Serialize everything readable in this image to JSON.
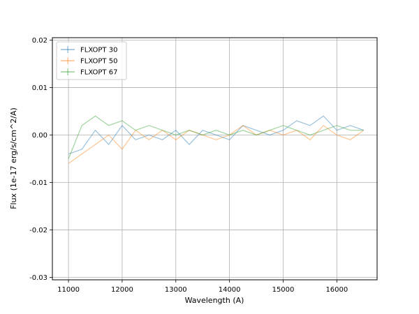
{
  "chart_data": {
    "type": "line",
    "title": "",
    "xlabel": "Wavelength (A)",
    "ylabel": "Flux (1e-17 erg/s/cm^2/A)",
    "xlim": [
      10700,
      16750
    ],
    "ylim": [
      -0.0305,
      0.0205
    ],
    "xticks": [
      11000,
      12000,
      13000,
      14000,
      15000,
      16000
    ],
    "xtick_labels": [
      "11000",
      "12000",
      "13000",
      "14000",
      "15000",
      "16000"
    ],
    "yticks": [
      -0.03,
      -0.02,
      -0.01,
      0.0,
      0.01,
      0.02
    ],
    "ytick_labels": [
      "-0.03",
      "-0.02",
      "-0.01",
      "0.00",
      "0.01",
      "0.02"
    ],
    "grid": true,
    "legend_position": "upper-left",
    "series": [
      {
        "name": "FLXOPT 30",
        "color": "#1f77b4",
        "x": [
          11000,
          11250,
          11500,
          11750,
          12000,
          12250,
          12500,
          12750,
          13000,
          13250,
          13500,
          13750,
          14000,
          14250,
          14500,
          14750,
          15000,
          15250,
          15500,
          15750,
          16000,
          16250,
          16500
        ],
        "y": [
          -0.004,
          -0.003,
          0.001,
          -0.002,
          0.002,
          -0.001,
          0.0,
          -0.001,
          0.001,
          -0.002,
          0.001,
          0.0,
          -0.001,
          0.002,
          0.001,
          0.0,
          0.001,
          0.003,
          0.002,
          0.004,
          0.001,
          0.002,
          0.001
        ]
      },
      {
        "name": "FLXOPT 50",
        "color": "#ff7f0e",
        "x": [
          11000,
          11250,
          11500,
          11750,
          12000,
          12250,
          12500,
          12750,
          13000,
          13250,
          13500,
          13750,
          14000,
          14250,
          14500,
          14750,
          15000,
          15250,
          15500,
          15750,
          16000,
          16250,
          16500
        ],
        "y": [
          -0.006,
          -0.004,
          -0.002,
          0.0,
          -0.003,
          0.001,
          -0.001,
          0.001,
          -0.001,
          0.001,
          0.0,
          -0.001,
          0.0,
          0.002,
          0.0,
          0.001,
          0.0,
          0.001,
          -0.001,
          0.002,
          0.0,
          -0.001,
          0.001
        ]
      },
      {
        "name": "FLXOPT 67",
        "color": "#2ca02c",
        "x": [
          11000,
          11250,
          11500,
          11750,
          12000,
          12250,
          12500,
          12750,
          13000,
          13250,
          13500,
          13750,
          14000,
          14250,
          14500,
          14750,
          15000,
          15250,
          15500,
          15750,
          16000,
          16250,
          16500
        ],
        "y": [
          -0.005,
          0.002,
          0.004,
          0.002,
          0.003,
          0.001,
          0.002,
          0.001,
          0.0,
          0.001,
          0.0,
          0.001,
          0.0,
          0.001,
          0.0,
          0.001,
          0.002,
          0.001,
          0.0,
          0.001,
          0.002,
          0.001,
          0.001
        ]
      }
    ]
  }
}
